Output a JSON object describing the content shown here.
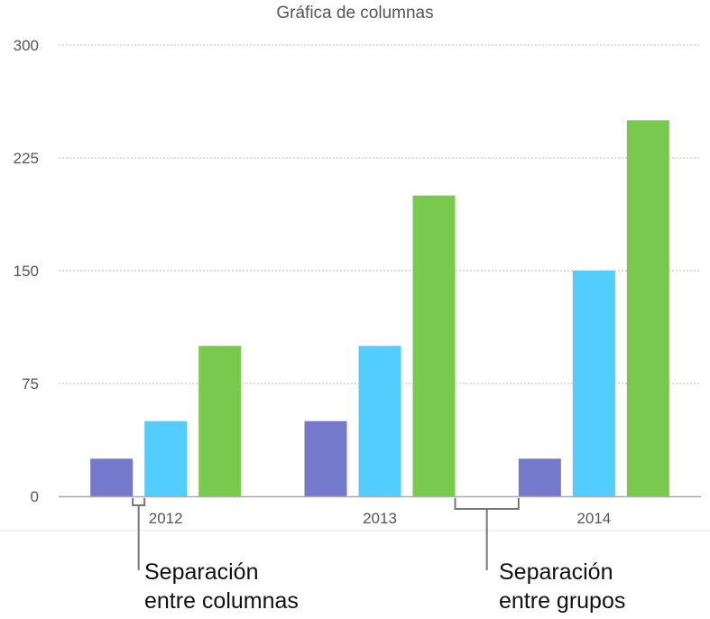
{
  "chart_data": {
    "type": "bar",
    "title": "Gráfica de columnas",
    "categories": [
      "2012",
      "2013",
      "2014"
    ],
    "series": [
      {
        "values": [
          25,
          50,
          25
        ],
        "color": "#7479CC"
      },
      {
        "values": [
          50,
          100,
          150
        ],
        "color": "#52CDFD"
      },
      {
        "values": [
          100,
          200,
          250
        ],
        "color": "#7AC94F"
      }
    ],
    "ylim": [
      0,
      300
    ],
    "yticks": [
      0,
      75,
      150,
      225,
      300
    ],
    "grid": true,
    "xlabel": "",
    "ylabel": ""
  },
  "annotations": {
    "column_gap": [
      "Separación",
      "entre columnas"
    ],
    "group_gap": [
      "Separación",
      "entre grupos"
    ]
  }
}
